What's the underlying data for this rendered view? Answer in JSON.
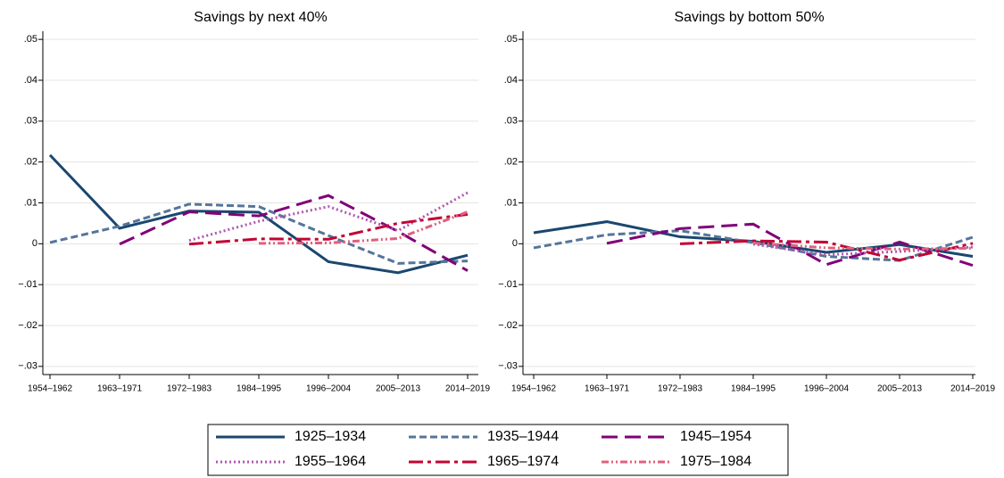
{
  "chart_data": [
    {
      "type": "line",
      "title": "Savings by next 40%",
      "categories": [
        "1954–1962",
        "1963–1971",
        "1972–1983",
        "1984–1995",
        "1996–2004",
        "2005–2013",
        "2014–2019"
      ],
      "ylim": [
        -0.032,
        0.052
      ],
      "yticks": [
        {
          "value": -0.03,
          "label": "−.03"
        },
        {
          "value": -0.02,
          "label": "−.02"
        },
        {
          "value": -0.01,
          "label": "−.01"
        },
        0,
        {
          "value": 0.01,
          "label": ".01"
        },
        {
          "value": 0.02,
          "label": ".02"
        },
        {
          "value": 0.03,
          "label": ".03"
        },
        {
          "value": 0.04,
          "label": ".04"
        },
        {
          "value": 0.05,
          "label": ".05"
        }
      ],
      "grid": true,
      "series": [
        {
          "name": "1925–1934",
          "color": "#1a476f",
          "dash": "none",
          "values": [
            0.0217,
            0.0038,
            0.008,
            0.0077,
            -0.0044,
            -0.0071,
            -0.0028
          ]
        },
        {
          "name": "1935–1944",
          "color": "#55759a",
          "dash": "8 4",
          "values": [
            0.0003,
            0.0043,
            0.0097,
            0.0091,
            0.002,
            -0.0048,
            -0.0042
          ]
        },
        {
          "name": "1945–1954",
          "color": "#800078",
          "dash": "18 8",
          "values": [
            null,
            -0.0001,
            0.0078,
            0.0068,
            0.0118,
            0.003,
            -0.0066
          ]
        },
        {
          "name": "1955–1964",
          "color": "#b057b0",
          "dash": "2 3",
          "values": [
            null,
            null,
            0.0008,
            0.0055,
            0.0091,
            0.0032,
            0.0125
          ]
        },
        {
          "name": "1965–1974",
          "color": "#c10534",
          "dash": "16 5 4 5",
          "values": [
            null,
            null,
            -0.0001,
            0.0012,
            0.0011,
            0.005,
            0.0072
          ]
        },
        {
          "name": "1975–1984",
          "color": "#e0607e",
          "dash": "8 3 2 3 2 3",
          "values": [
            null,
            null,
            null,
            0.0001,
            0.0002,
            0.0013,
            0.0078
          ]
        }
      ]
    },
    {
      "type": "line",
      "title": "Savings by bottom 50%",
      "categories": [
        "1954–1962",
        "1963–1971",
        "1972–1983",
        "1984–1995",
        "1996–2004",
        "2005–2013",
        "2014–2019"
      ],
      "ylim": [
        -0.032,
        0.052
      ],
      "yticks": [
        {
          "value": -0.03,
          "label": "−.03"
        },
        {
          "value": -0.02,
          "label": "−.02"
        },
        {
          "value": -0.01,
          "label": "−.01"
        },
        0,
        {
          "value": 0.01,
          "label": ".01"
        },
        {
          "value": 0.02,
          "label": ".02"
        },
        {
          "value": 0.03,
          "label": ".03"
        },
        {
          "value": 0.04,
          "label": ".04"
        },
        {
          "value": 0.05,
          "label": ".05"
        }
      ],
      "grid": true,
      "series": [
        {
          "color": "#1a476f",
          "dash": "none",
          "values": [
            0.0027,
            0.0054,
            0.0017,
            0.0006,
            -0.0021,
            -0.0002,
            -0.0031
          ]
        },
        {
          "color": "#55759a",
          "dash": "8 4",
          "values": [
            -0.001,
            0.0022,
            0.0032,
            0.0003,
            -0.0031,
            -0.0041,
            0.0016
          ]
        },
        {
          "color": "#800078",
          "dash": "18 8",
          "values": [
            null,
            0.0001,
            0.0037,
            0.0048,
            -0.0051,
            0.0004,
            -0.0053
          ]
        },
        {
          "color": "#b057b0",
          "dash": "2 3",
          "values": [
            null,
            null,
            null,
            -0.0001,
            -0.0027,
            -0.0019,
            -0.0008
          ]
        },
        {
          "color": "#c10534",
          "dash": "16 5 4 5",
          "values": [
            null,
            null,
            0.0,
            0.0007,
            0.0004,
            -0.004,
            0.0001
          ]
        },
        {
          "color": "#e0607e",
          "dash": "8 3 2 3 2 3",
          "values": [
            null,
            null,
            null,
            0.0002,
            -0.001,
            -0.0013,
            -0.0011
          ]
        }
      ]
    }
  ]
}
